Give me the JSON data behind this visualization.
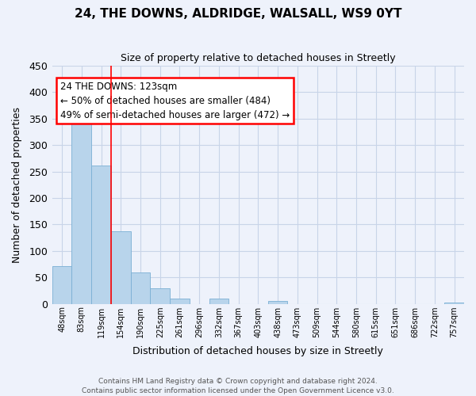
{
  "title": "24, THE DOWNS, ALDRIDGE, WALSALL, WS9 0YT",
  "subtitle": "Size of property relative to detached houses in Streetly",
  "xlabel": "Distribution of detached houses by size in Streetly",
  "ylabel": "Number of detached properties",
  "bar_color": "#b8d4eb",
  "bar_edge_color": "#7aafd4",
  "categories": [
    "48sqm",
    "83sqm",
    "119sqm",
    "154sqm",
    "190sqm",
    "225sqm",
    "261sqm",
    "296sqm",
    "332sqm",
    "367sqm",
    "403sqm",
    "438sqm",
    "473sqm",
    "509sqm",
    "544sqm",
    "580sqm",
    "615sqm",
    "651sqm",
    "686sqm",
    "722sqm",
    "757sqm"
  ],
  "values": [
    72,
    378,
    262,
    137,
    60,
    29,
    10,
    0,
    10,
    0,
    0,
    5,
    0,
    0,
    0,
    0,
    0,
    0,
    0,
    0,
    3
  ],
  "ylim": [
    0,
    450
  ],
  "yticks": [
    0,
    50,
    100,
    150,
    200,
    250,
    300,
    350,
    400,
    450
  ],
  "marker_label": "24 THE DOWNS: 123sqm",
  "annotation_line1": "← 50% of detached houses are smaller (484)",
  "annotation_line2": "49% of semi-detached houses are larger (472) →",
  "red_line_bar_index": 2,
  "footer1": "Contains HM Land Registry data © Crown copyright and database right 2024.",
  "footer2": "Contains public sector information licensed under the Open Government Licence v3.0.",
  "background_color": "#eef2fb",
  "grid_color": "#c8d4e8",
  "title_fontsize": 11,
  "subtitle_fontsize": 9
}
